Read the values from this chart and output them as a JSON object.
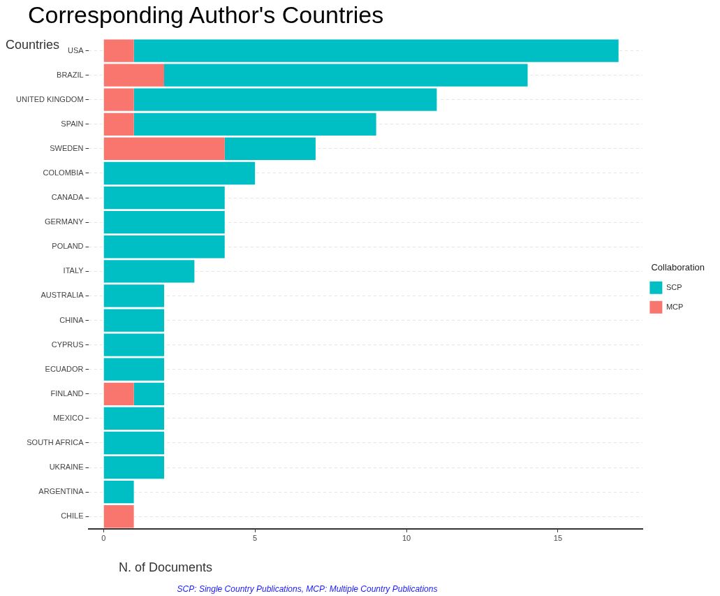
{
  "chart_data": {
    "type": "bar",
    "title": "Corresponding Author's Countries",
    "xlabel": "N. of Documents",
    "ylabel": "Countries",
    "legend_title": "Collaboration",
    "orientation": "horizontal",
    "stacked": true,
    "categories": [
      "USA",
      "BRAZIL",
      "UNITED KINGDOM",
      "SPAIN",
      "SWEDEN",
      "COLOMBIA",
      "CANADA",
      "GERMANY",
      "POLAND",
      "ITALY",
      "AUSTRALIA",
      "CHINA",
      "CYPRUS",
      "ECUADOR",
      "FINLAND",
      "MEXICO",
      "SOUTH AFRICA",
      "UKRAINE",
      "ARGENTINA",
      "CHILE"
    ],
    "series": [
      {
        "name": "MCP",
        "color": "#f8766d",
        "values": [
          1,
          2,
          1,
          1,
          4,
          0,
          0,
          0,
          0,
          0,
          0,
          0,
          0,
          0,
          1,
          0,
          0,
          0,
          0,
          1
        ]
      },
      {
        "name": "SCP",
        "color": "#00bfc4",
        "values": [
          16,
          12,
          10,
          8,
          3,
          5,
          4,
          4,
          4,
          3,
          2,
          2,
          2,
          2,
          1,
          2,
          2,
          2,
          1,
          0
        ]
      }
    ],
    "xlim": [
      -0.5,
      17.8
    ],
    "xticks": [
      0,
      5,
      10,
      15
    ],
    "grid": "y",
    "legend": "right",
    "annotations": [
      "SCP: Single Country Publications, MCP: Multiple Country Publications"
    ]
  }
}
